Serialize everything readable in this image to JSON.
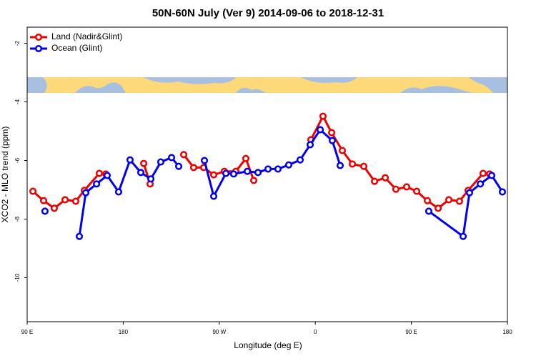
{
  "chart_data": {
    "type": "line",
    "title": "50N-60N July (Ver 9)   2014-09-06 to 2018-12-31",
    "x_label": "Longitude (deg E)",
    "y_label": "XCO2 - MLO trend (ppm)",
    "xlim": [
      90,
      540
    ],
    "ylim": [
      -11.5,
      -1.45
    ],
    "xticks": [
      {
        "value": 90,
        "label": "90 E"
      },
      {
        "value": 180,
        "label": "180"
      },
      {
        "value": 270,
        "label": "90 W"
      },
      {
        "value": 360,
        "label": "0"
      },
      {
        "value": 450,
        "label": "90 E"
      },
      {
        "value": 540,
        "label": "180"
      }
    ],
    "yticks": [
      -10,
      -8,
      -6,
      -4,
      -2
    ],
    "legend": "top-left",
    "series": [
      {
        "name": "Land (Nadir&Glint)",
        "color": "#ee0000",
        "x": [
          95.4,
          105.4,
          115.4,
          125.5,
          135.5,
          143.6,
          157.6,
          163.7,
          null,
          199.2,
          205.2,
          null,
          236.7,
          246,
          255.4,
          264.8,
          274.8,
          285.5,
          294.9,
          302.3,
          null,
          355.9,
          367.2,
          375.3,
          385.3,
          394.7,
          405.4,
          415.5,
          425.5,
          435.5,
          445.6,
          455,
          465,
          475.1,
          485.1,
          495.1,
          503.2,
          517.2,
          523.3
        ],
        "values": [
          -7.05,
          -7.37,
          -7.63,
          -7.34,
          -7.39,
          -7.02,
          -6.44,
          -6.46,
          null,
          -6.1,
          -6.8,
          null,
          -5.8,
          -6.24,
          -6.24,
          -6.49,
          -6.37,
          -6.37,
          -5.93,
          -6.68,
          null,
          -5.29,
          -4.49,
          -5.05,
          -5.66,
          -6.12,
          -6.2,
          -6.71,
          -6.59,
          -6.98,
          -6.9,
          -7.05,
          -7.37,
          -7.63,
          -7.34,
          -7.39,
          -7.02,
          -6.44,
          -6.46
        ]
      },
      {
        "name": "Ocean (Glint)",
        "color": "#0000ee",
        "x": [
          106.7,
          null,
          138.9,
          144.9,
          155,
          165,
          175.7,
          186.4,
          196.5,
          205.9,
          215.2,
          225.3,
          232,
          null,
          256.1,
          264.8,
          276.2,
          283.5,
          296.3,
          306.3,
          315.7,
          325,
          335.1,
          345.8,
          355.2,
          364.6,
          375.9,
          383.3,
          null,
          466.3,
          498.5,
          504.5,
          514.6,
          525.3,
          535.3
        ],
        "values": [
          -7.73,
          null,
          -8.59,
          -7.1,
          -6.8,
          -6.51,
          -7.07,
          -5.98,
          -6.41,
          -6.63,
          -6.05,
          -5.9,
          -6.2,
          null,
          -6.0,
          -7.22,
          -6.44,
          -6.46,
          -6.37,
          -6.41,
          -6.29,
          -6.29,
          -6.15,
          -5.98,
          -5.46,
          -4.95,
          -5.32,
          -6.17,
          null,
          -7.73,
          -8.59,
          -7.1,
          -6.8,
          -6.51,
          -7.07
        ]
      }
    ]
  }
}
